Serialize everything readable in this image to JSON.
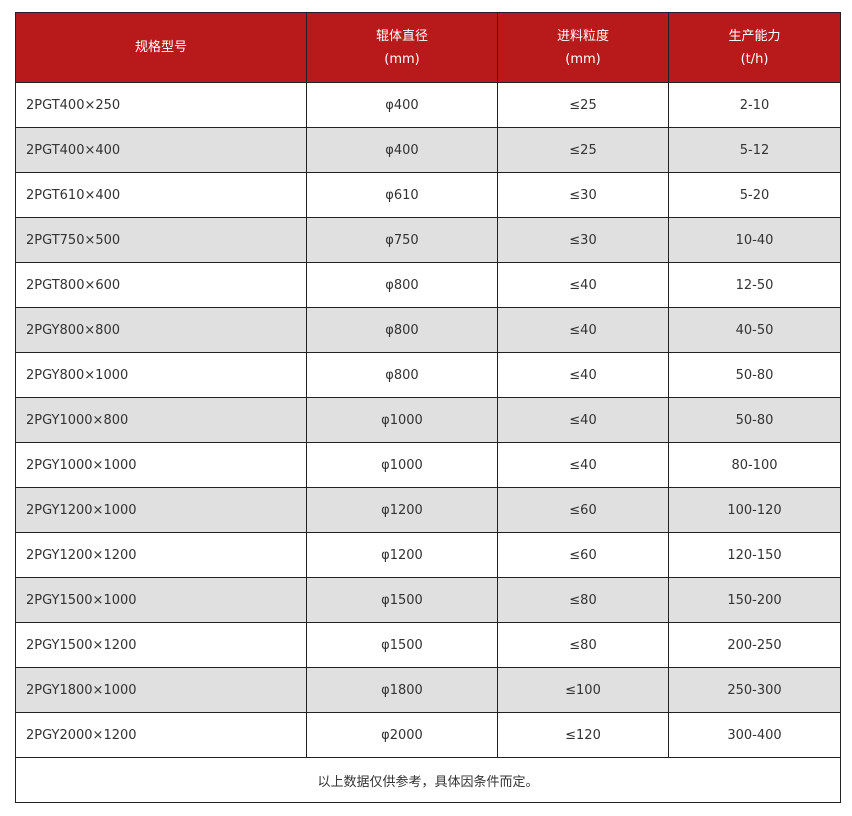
{
  "colors": {
    "header_bg": "#b8191b",
    "stripe": "#e0e0e0"
  },
  "headers": [
    {
      "line1": "规格型号",
      "line2": ""
    },
    {
      "line1": "辊体直径",
      "line2": "(mm)"
    },
    {
      "line1": "进料粒度",
      "line2": "(mm)"
    },
    {
      "line1": "生产能力",
      "line2": "(t/h)"
    }
  ],
  "rows": [
    [
      "2PGT400×250",
      "φ400",
      "≤25",
      "2-10"
    ],
    [
      "2PGT400×400",
      "φ400",
      "≤25",
      "5-12"
    ],
    [
      "2PGT610×400",
      "φ610",
      "≤30",
      "5-20"
    ],
    [
      "2PGT750×500",
      "φ750",
      "≤30",
      "10-40"
    ],
    [
      "2PGT800×600",
      "φ800",
      "≤40",
      "12-50"
    ],
    [
      "2PGY800×800",
      "φ800",
      "≤40",
      "40-50"
    ],
    [
      "2PGY800×1000",
      "φ800",
      "≤40",
      "50-80"
    ],
    [
      "2PGY1000×800",
      "φ1000",
      "≤40",
      "50-80"
    ],
    [
      "2PGY1000×1000",
      "φ1000",
      "≤40",
      "80-100"
    ],
    [
      "2PGY1200×1000",
      "φ1200",
      "≤60",
      "100-120"
    ],
    [
      "2PGY1200×1200",
      "φ1200",
      "≤60",
      "120-150"
    ],
    [
      "2PGY1500×1000",
      "φ1500",
      "≤80",
      "150-200"
    ],
    [
      "2PGY1500×1200",
      "φ1500",
      "≤80",
      "200-250"
    ],
    [
      "2PGY1800×1000",
      "φ1800",
      "≤100",
      "250-300"
    ],
    [
      "2PGY2000×1200",
      "φ2000",
      "≤120",
      "300-400"
    ]
  ],
  "note": "以上数据仅供参考，具体因条件而定。"
}
